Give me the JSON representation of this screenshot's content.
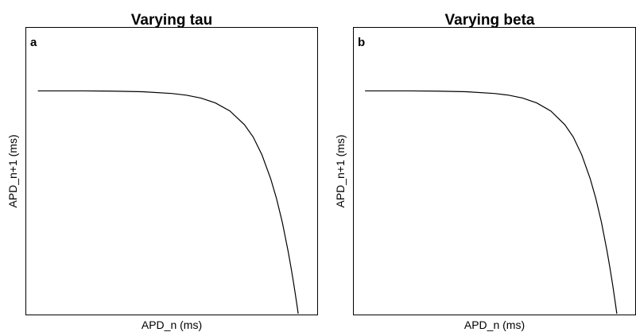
{
  "chart_data": [
    {
      "type": "line",
      "panel_label": "a",
      "title": "Varying tau",
      "xlabel": "APD_n (ms)",
      "ylabel": "APD_n+1 (ms)",
      "x_ticks_shown": false,
      "y_ticks_shown": false,
      "grid": false,
      "series": [
        {
          "x": [
            0.04,
            0.1,
            0.2,
            0.3,
            0.4,
            0.5,
            0.55,
            0.6,
            0.65,
            0.7,
            0.75,
            0.78,
            0.81,
            0.84,
            0.86,
            0.88,
            0.9,
            0.91,
            0.92,
            0.93,
            0.94
          ],
          "y": [
            0.78,
            0.78,
            0.78,
            0.779,
            0.777,
            0.771,
            0.765,
            0.755,
            0.738,
            0.71,
            0.662,
            0.619,
            0.557,
            0.474,
            0.405,
            0.322,
            0.221,
            0.164,
            0.103,
            0.036,
            -0.035
          ]
        }
      ]
    },
    {
      "type": "line",
      "panel_label": "b",
      "title": "Varying beta",
      "xlabel": "APD_n (ms)",
      "ylabel": "APD_n+1 (ms)",
      "x_ticks_shown": false,
      "y_ticks_shown": false,
      "grid": false,
      "series": [
        {
          "x": [
            0.04,
            0.1,
            0.2,
            0.3,
            0.4,
            0.5,
            0.55,
            0.6,
            0.65,
            0.7,
            0.75,
            0.78,
            0.81,
            0.84,
            0.86,
            0.88,
            0.9,
            0.91,
            0.92,
            0.93,
            0.94
          ],
          "y": [
            0.78,
            0.78,
            0.78,
            0.779,
            0.777,
            0.771,
            0.765,
            0.755,
            0.738,
            0.71,
            0.662,
            0.619,
            0.557,
            0.474,
            0.405,
            0.322,
            0.221,
            0.164,
            0.103,
            0.036,
            -0.035
          ]
        }
      ]
    }
  ]
}
